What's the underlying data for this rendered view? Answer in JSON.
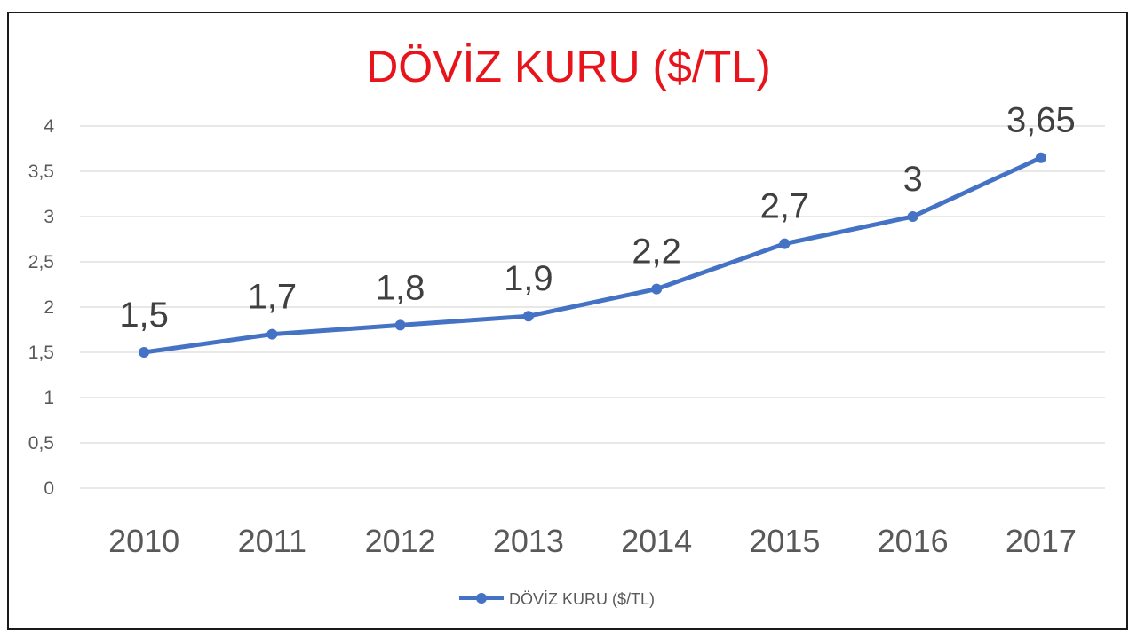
{
  "chart_data": {
    "type": "line",
    "title": "DÖVİZ KURU ($/TL)",
    "xlabel": "",
    "ylabel": "",
    "categories": [
      "2010",
      "2011",
      "2012",
      "2013",
      "2014",
      "2015",
      "2016",
      "2017"
    ],
    "series": [
      {
        "name": "DÖVİZ KURU ($/TL)",
        "values": [
          1.5,
          1.7,
          1.8,
          1.9,
          2.2,
          2.7,
          3,
          3.65
        ],
        "labels": [
          "1,5",
          "1,7",
          "1,8",
          "1,9",
          "2,2",
          "2,7",
          "3",
          "3,65"
        ]
      }
    ],
    "ylim": [
      0,
      4
    ],
    "yticks": [
      0,
      0.5,
      1,
      1.5,
      2,
      2.5,
      3,
      3.5,
      4
    ],
    "ytick_labels": [
      "0",
      "0,5",
      "1",
      "1,5",
      "2",
      "2,5",
      "3",
      "3,5",
      "4"
    ],
    "grid": true,
    "legend_position": "bottom-center",
    "colors": {
      "title": "#e8141c",
      "series": "#4472c4",
      "gridline": "#d9d9d9",
      "tick_text": "#595959",
      "data_label": "#404040",
      "border": "#1a1a1a"
    }
  }
}
